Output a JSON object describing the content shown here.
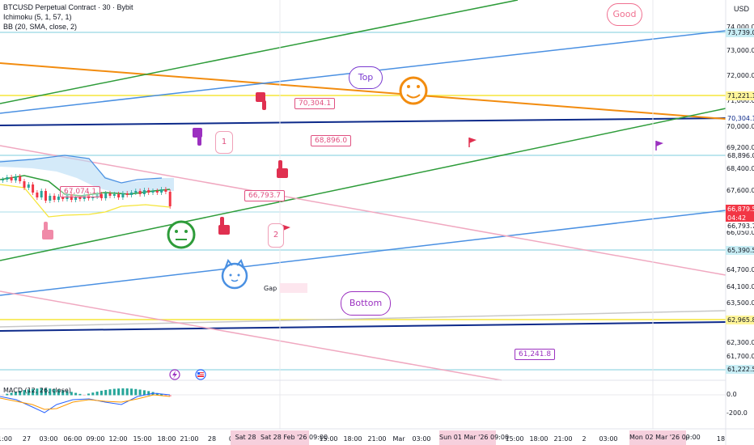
{
  "legend": {
    "symbol": "BTCUSD Perpetual Contract · 30 · Bybit",
    "ichimoku": "Ichimoku (5, 1, 57, 1)",
    "bb": "BB (20, SMA, close, 2)",
    "macd": "MACD (12, 26, close)"
  },
  "currency": "USD",
  "price_ticks": [
    "74,000.0",
    "73,000.0",
    "72,000.0",
    "71,000.0",
    "70,000.0",
    "69,200.0",
    "68,400.0",
    "67,600.0",
    "66,050.0",
    "64,700.0",
    "64,100.0",
    "63,500.0",
    "62,300.0",
    "61,700.0"
  ],
  "price_tags": [
    {
      "text": "73,739.0",
      "bg": "#c9eef5",
      "fg": "#131722"
    },
    {
      "text": "71,221.1",
      "bg": "#fff59a",
      "fg": "#131722"
    },
    {
      "text": "70,304.1",
      "bg": "#ffffff",
      "fg": "#0d2a8a"
    },
    {
      "text": "68,896.0",
      "bg": "#ffffff",
      "fg": "#131722"
    },
    {
      "text": "66,879.5",
      "bg": "#f23645",
      "fg": "#ffffff"
    },
    {
      "text": "04:42",
      "bg": "#f23645",
      "fg": "#ffffff"
    },
    {
      "text": "66,793.7",
      "bg": "#ffffff",
      "fg": "#131722"
    },
    {
      "text": "65,390.5",
      "bg": "#c9eef5",
      "fg": "#131722"
    },
    {
      "text": "62,965.8",
      "bg": "#fff59a",
      "fg": "#131722"
    },
    {
      "text": "61,222.5",
      "bg": "#c9eef5",
      "fg": "#131722"
    }
  ],
  "macd_ticks": [
    "0.0",
    "-200.0"
  ],
  "time_ticks": [
    "1:00",
    "27",
    "03:00",
    "06:00",
    "09:00",
    "12:00",
    "15:00",
    "18:00",
    "21:00",
    "28",
    "03",
    "15:00",
    "18:00",
    "21:00",
    "Mar",
    "03:00",
    "15:00",
    "18:00",
    "21:00",
    "2",
    "03:00",
    "15:00",
    "18"
  ],
  "time_highlights": [
    "Sat 28",
    "Sat 28 Feb '26  09:00",
    "Sun 01 Mar '26  09:00",
    "Mon 02 Mar '26  09:00"
  ],
  "callouts": [
    {
      "text": "70,304.1",
      "color": "#e05080"
    },
    {
      "text": "68,896.0",
      "color": "#e05080"
    },
    {
      "text": "66,793.7",
      "color": "#e05080"
    },
    {
      "text": "67,074.1",
      "color": "#e05080"
    },
    {
      "text": "61,241.8",
      "color": "#9b30c0"
    }
  ],
  "bubbles": [
    {
      "text": "Good",
      "color": "#f07090"
    },
    {
      "text": "Top",
      "color": "#7a3ad0"
    },
    {
      "text": "Bottom",
      "color": "#9b30c0"
    }
  ],
  "notes": [
    "1",
    "2"
  ],
  "gap_label": "Gap",
  "colors": {
    "green_line": "#2e9c3a",
    "blue_line": "#4a90e2",
    "orange_line": "#f28c0f",
    "navy_line": "#0d2a8a",
    "pink_line": "#f0a8c0",
    "yellow_line": "#f5e53a",
    "cyan_line": "#a8dde8",
    "up_candle": "#26a69a",
    "down_candle": "#f23645"
  },
  "icons": [
    "hand-pointing-down-icon",
    "hand-pointing-up-icon",
    "smiley-face-icon",
    "neutral-face-icon",
    "cat-face-icon",
    "flag-icon",
    "lightning-icon",
    "us-flag-icon"
  ]
}
